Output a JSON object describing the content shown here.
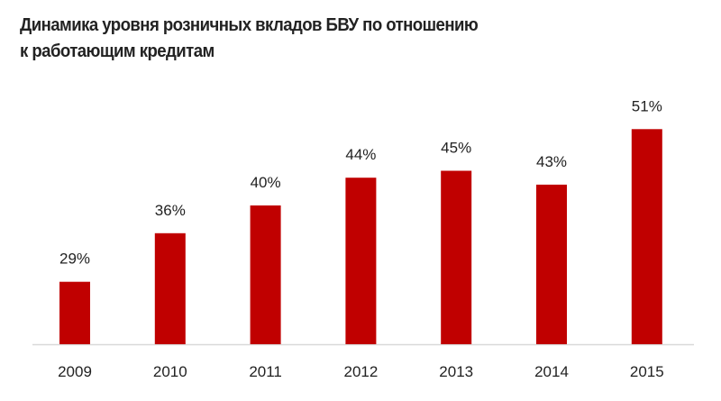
{
  "chart_data": {
    "type": "bar",
    "title": "Динамика уровня розничных вкладов БВУ по  отношению к работающим кредитам",
    "title_lines": [
      "Динамика уровня розничных вкладов БВУ по  отношению",
      "к работающим кредитам"
    ],
    "categories": [
      "2009",
      "2010",
      "2011",
      "2012",
      "2013",
      "2014",
      "2015"
    ],
    "values": [
      29,
      36,
      40,
      44,
      45,
      43,
      51
    ],
    "data_labels": [
      "29%",
      "36%",
      "40%",
      "44%",
      "45%",
      "43%",
      "51%"
    ],
    "unit": "%",
    "xlabel": "",
    "ylabel": "",
    "ylim": [
      20,
      55
    ],
    "grid": false,
    "legend": "none",
    "colors": {
      "bar": "#C00000",
      "axis": "#D9D9D9",
      "text": "#222222"
    }
  }
}
